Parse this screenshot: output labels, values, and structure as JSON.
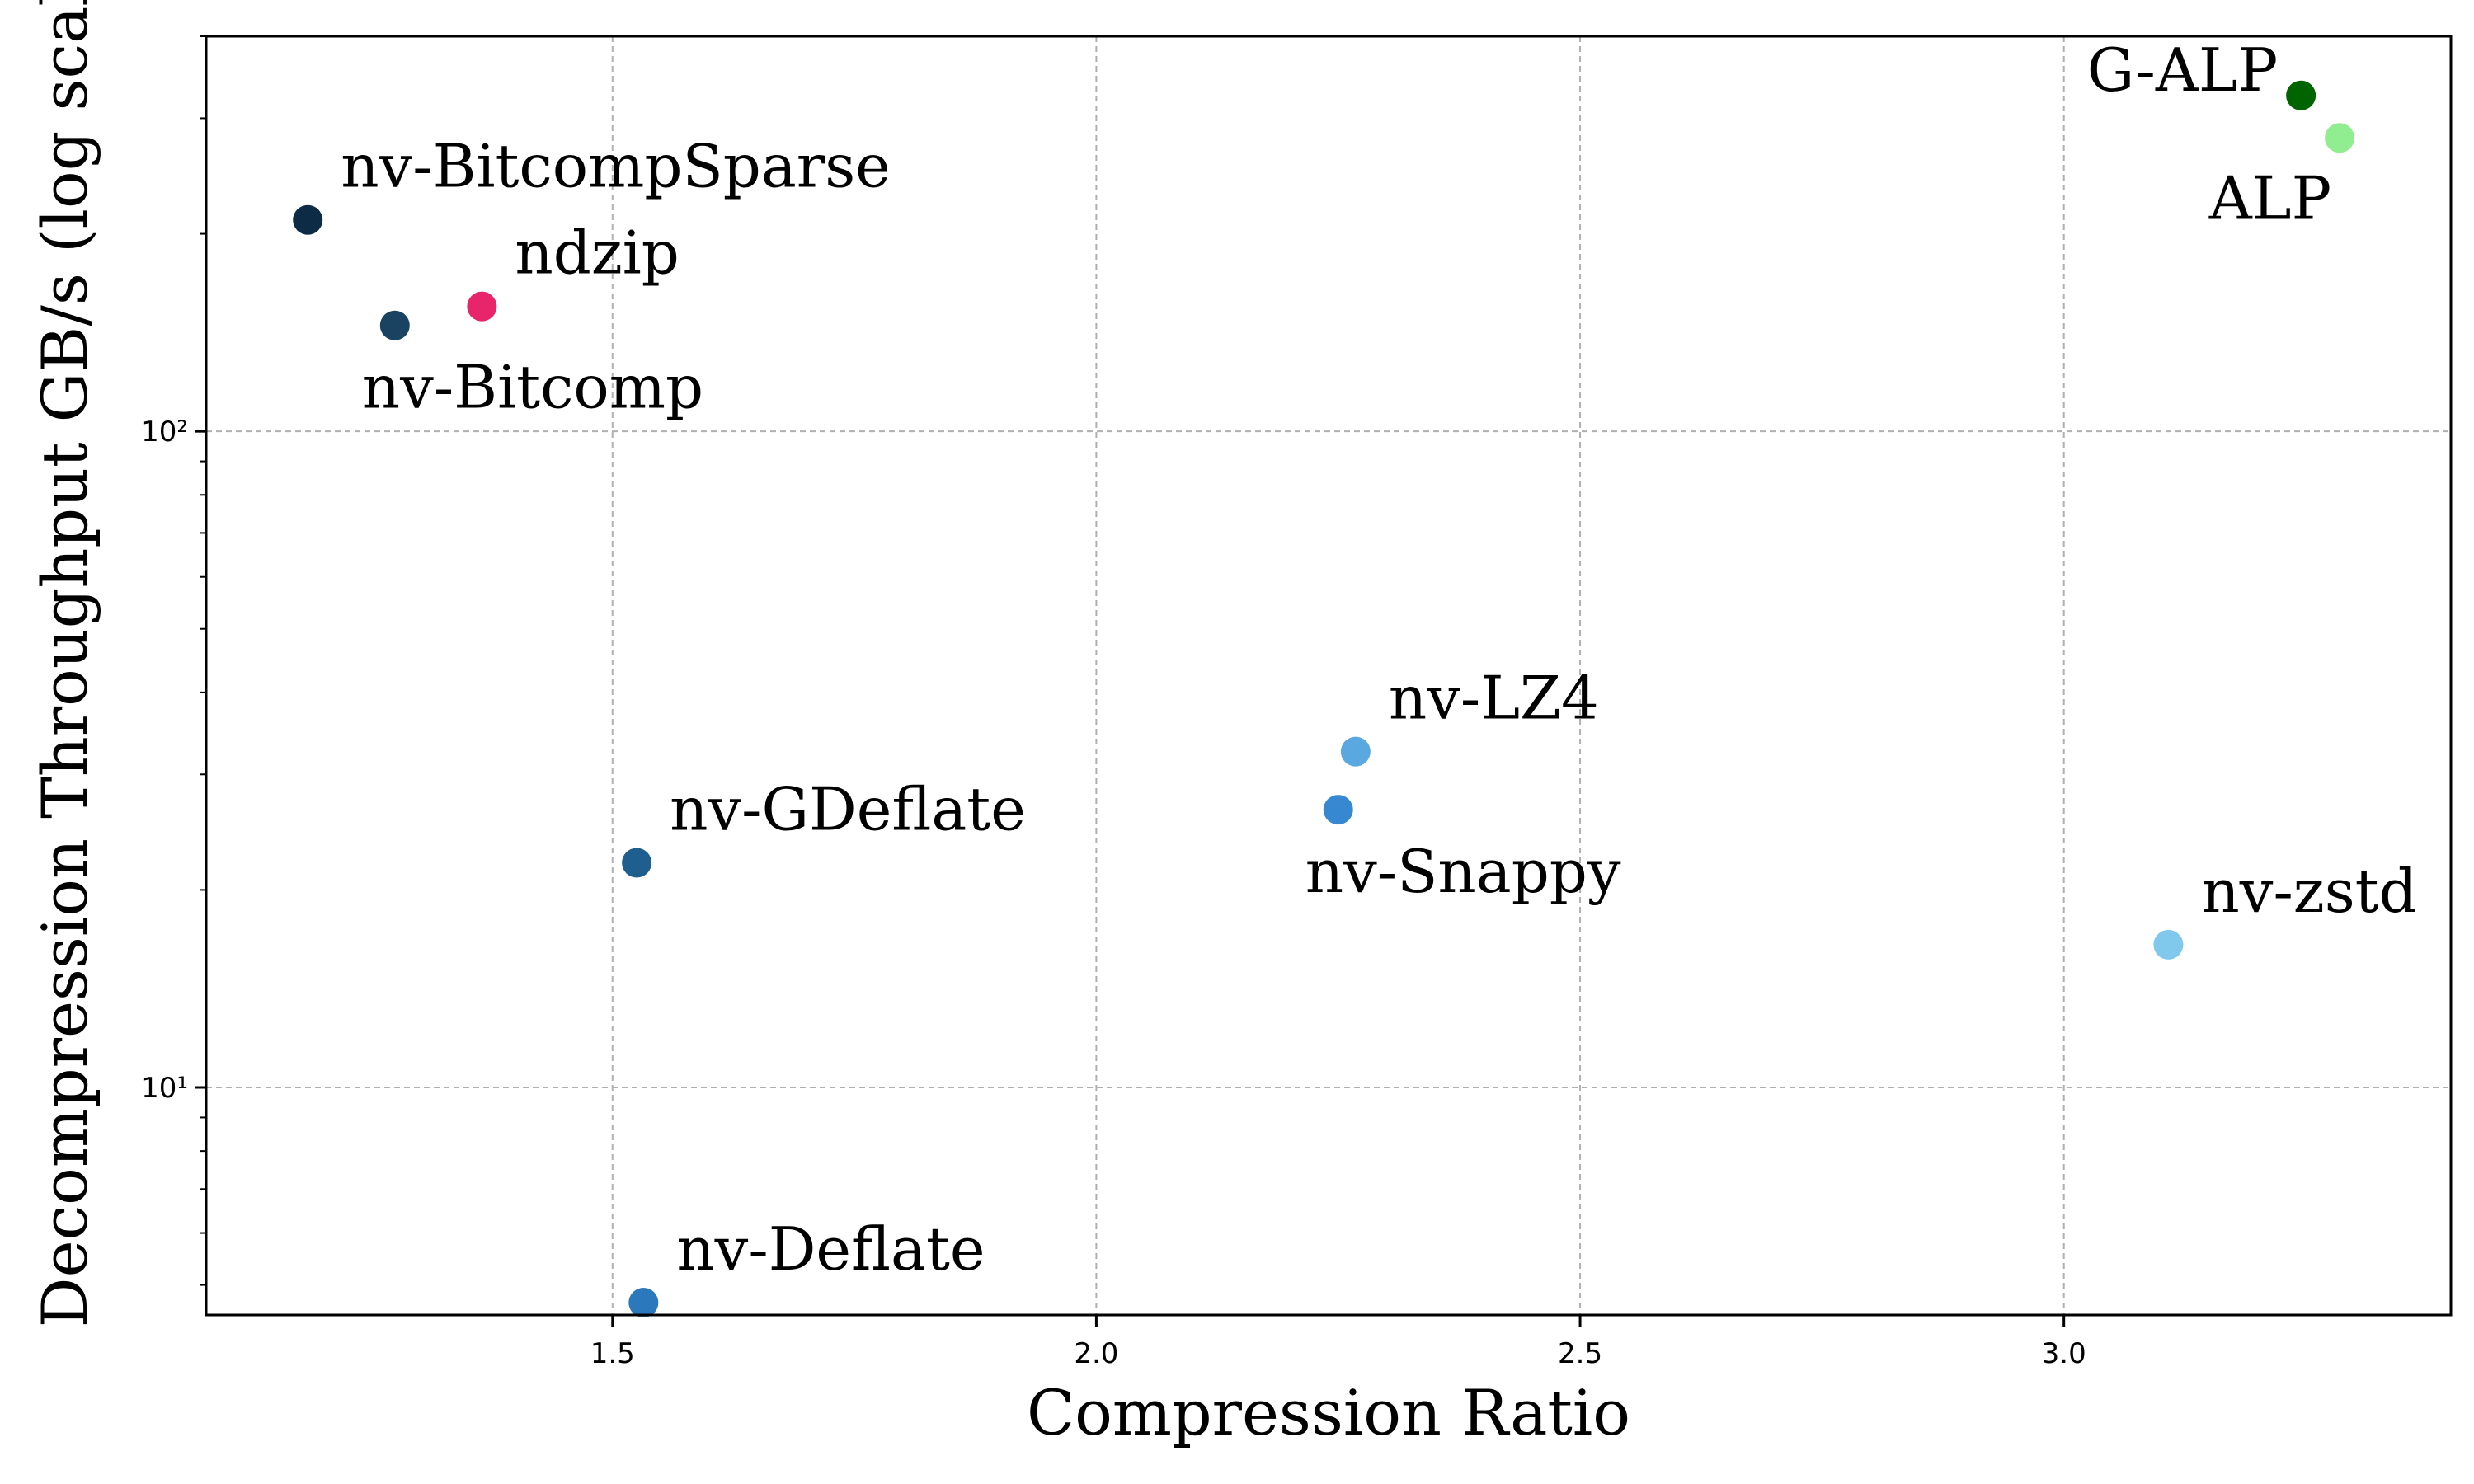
{
  "chart_data": {
    "type": "scatter",
    "xlabel": "Compression Ratio",
    "ylabel": "Decompression Throughput GB/s (log scale)",
    "xlim": [
      1.08,
      3.4
    ],
    "ylim": [
      4.5,
      400
    ],
    "yscale": "log",
    "grid": true,
    "x_ticks": [
      1.5,
      2.0,
      2.5,
      3.0
    ],
    "x_tick_labels": [
      "1.5",
      "2.0",
      "2.5",
      "3.0"
    ],
    "y_ticks": [
      10,
      100
    ],
    "y_tick_labels": [
      "10¹",
      "10²"
    ],
    "points": [
      {
        "label": "nv-BitcompSparse",
        "x": 1.185,
        "y": 210,
        "color": "#0d2b45",
        "label_pos": "above-right"
      },
      {
        "label": "ndzip",
        "x": 1.365,
        "y": 155,
        "color": "#e8246a",
        "label_pos": "above-right"
      },
      {
        "label": "nv-Bitcomp",
        "x": 1.275,
        "y": 145,
        "color": "#1a4261",
        "label_pos": "below-right"
      },
      {
        "label": "nv-GDeflate",
        "x": 1.525,
        "y": 22,
        "color": "#1f5f8f",
        "label_pos": "above-right"
      },
      {
        "label": "nv-Deflate",
        "x": 1.532,
        "y": 4.7,
        "color": "#2b78bd",
        "label_pos": "above-right"
      },
      {
        "label": "nv-LZ4",
        "x": 2.268,
        "y": 32.5,
        "color": "#5ba8e0",
        "label_pos": "above-right"
      },
      {
        "label": "nv-Snappy",
        "x": 2.25,
        "y": 26.5,
        "color": "#3689d0",
        "label_pos": "below-right"
      },
      {
        "label": "nv-zstd",
        "x": 3.108,
        "y": 16.5,
        "color": "#80c8ec",
        "label_pos": "above-right"
      },
      {
        "label": "G-ALP",
        "x": 3.245,
        "y": 325,
        "color": "#006400",
        "label_pos": "left"
      },
      {
        "label": "ALP",
        "x": 3.285,
        "y": 280,
        "color": "#90ee90",
        "label_pos": "below-left"
      }
    ]
  }
}
